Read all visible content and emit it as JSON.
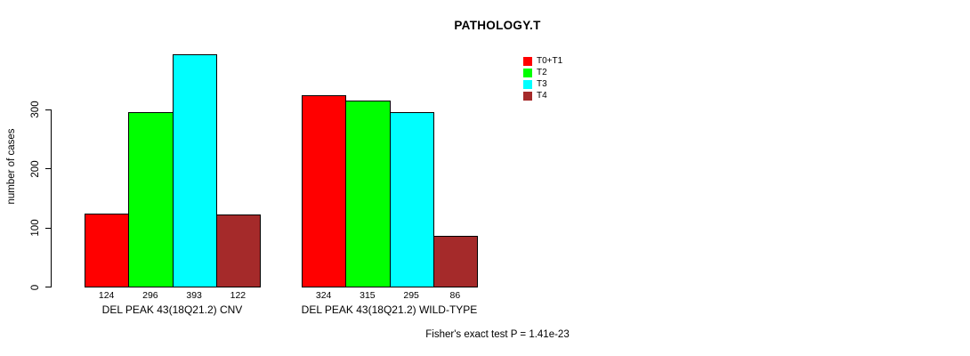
{
  "title": "PATHOLOGY.T",
  "y_axis": {
    "label": "number of cases",
    "ticks": [
      0,
      100,
      200,
      300
    ]
  },
  "legend": {
    "items": [
      {
        "label": "T0+T1",
        "color": "#FF0000"
      },
      {
        "label": "T2",
        "color": "#00FF00"
      },
      {
        "label": "T3",
        "color": "#00FFFF"
      },
      {
        "label": "T4",
        "color": "#A52A2A"
      }
    ]
  },
  "footer": "Fisher's exact test P = 1.41e-23",
  "chart_data": {
    "type": "bar",
    "title": "PATHOLOGY.T",
    "ylabel": "number of cases",
    "xlabel": "",
    "yticks": [
      0,
      100,
      200,
      300
    ],
    "ylim": [
      0,
      400
    ],
    "grid": false,
    "legend_position": "top-right",
    "categories": [
      "DEL PEAK 43(18Q21.2) CNV",
      "DEL PEAK 43(18Q21.2) WILD-TYPE"
    ],
    "series": [
      {
        "name": "T0+T1",
        "color": "#FF0000",
        "values": [
          124,
          324
        ]
      },
      {
        "name": "T2",
        "color": "#00FF00",
        "values": [
          296,
          315
        ]
      },
      {
        "name": "T3",
        "color": "#00FFFF",
        "values": [
          393,
          295
        ]
      },
      {
        "name": "T4",
        "color": "#A52A2A",
        "values": [
          122,
          86
        ]
      }
    ],
    "bar_value_labels": [
      [
        124,
        296,
        393,
        122
      ],
      [
        324,
        315,
        295,
        86
      ]
    ],
    "annotation": "Fisher's exact test P = 1.41e-23"
  }
}
